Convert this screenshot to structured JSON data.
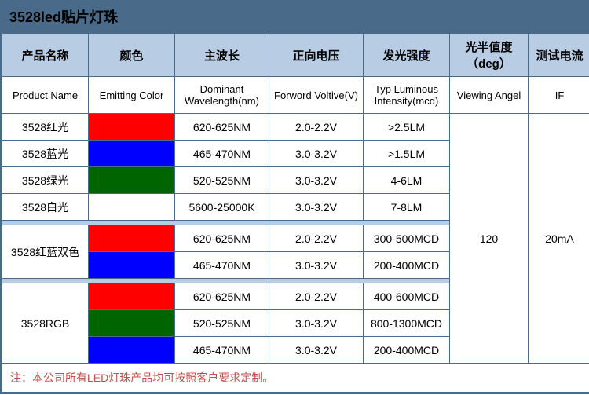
{
  "title": "3528led贴片灯珠",
  "headers_cn": [
    "产品名称",
    "颜色",
    "主波长",
    "正向电压",
    "发光强度",
    "光半值度（deg）",
    "测试电流"
  ],
  "headers_en": [
    "Product Name",
    "Emitting Color",
    "Dominant Wavelength(nm)",
    "Forword Voltive(V)",
    "Typ Luminous Intensity(mcd)",
    "Viewing Angel",
    "IF"
  ],
  "group1": [
    {
      "name": "3528红光",
      "color": "#ff0000",
      "wl": "620-625NM",
      "fv": "2.0-2.2V",
      "li": ">2.5LM"
    },
    {
      "name": "3528蓝光",
      "color": "#0000ff",
      "wl": "465-470NM",
      "fv": "3.0-3.2V",
      "li": ">1.5LM"
    },
    {
      "name": "3528绿光",
      "color": "#006400",
      "wl": "520-525NM",
      "fv": "3.0-3.2V",
      "li": "4-6LM"
    },
    {
      "name": "3528白光",
      "color": "#ffffff",
      "wl": "5600-25000K",
      "fv": "3.0-3.2V",
      "li": "7-8LM"
    }
  ],
  "group2": {
    "name": "3528红蓝双色",
    "rows": [
      {
        "color": "#ff0000",
        "wl": "620-625NM",
        "fv": "2.0-2.2V",
        "li": "300-500MCD"
      },
      {
        "color": "#0000ff",
        "wl": "465-470NM",
        "fv": "3.0-3.2V",
        "li": "200-400MCD"
      }
    ]
  },
  "group3": {
    "name": "3528RGB",
    "rows": [
      {
        "color": "#ff0000",
        "wl": "620-625NM",
        "fv": "2.0-2.2V",
        "li": "400-600MCD"
      },
      {
        "color": "#006400",
        "wl": "520-525NM",
        "fv": "3.0-3.2V",
        "li": "800-1300MCD"
      },
      {
        "color": "#0000ff",
        "wl": "465-470NM",
        "fv": "3.0-3.2V",
        "li": "200-400MCD"
      }
    ]
  },
  "viewing_angle": "120",
  "test_current": "20mA",
  "footnote": "注：本公司所有LED灯珠产品均可按照客户要求定制。",
  "colors": {
    "header_bg": "#b8cce4",
    "border": "#4a6a8a",
    "title_bg": "#4a6a8a",
    "footnote_color": "#c0504d"
  }
}
